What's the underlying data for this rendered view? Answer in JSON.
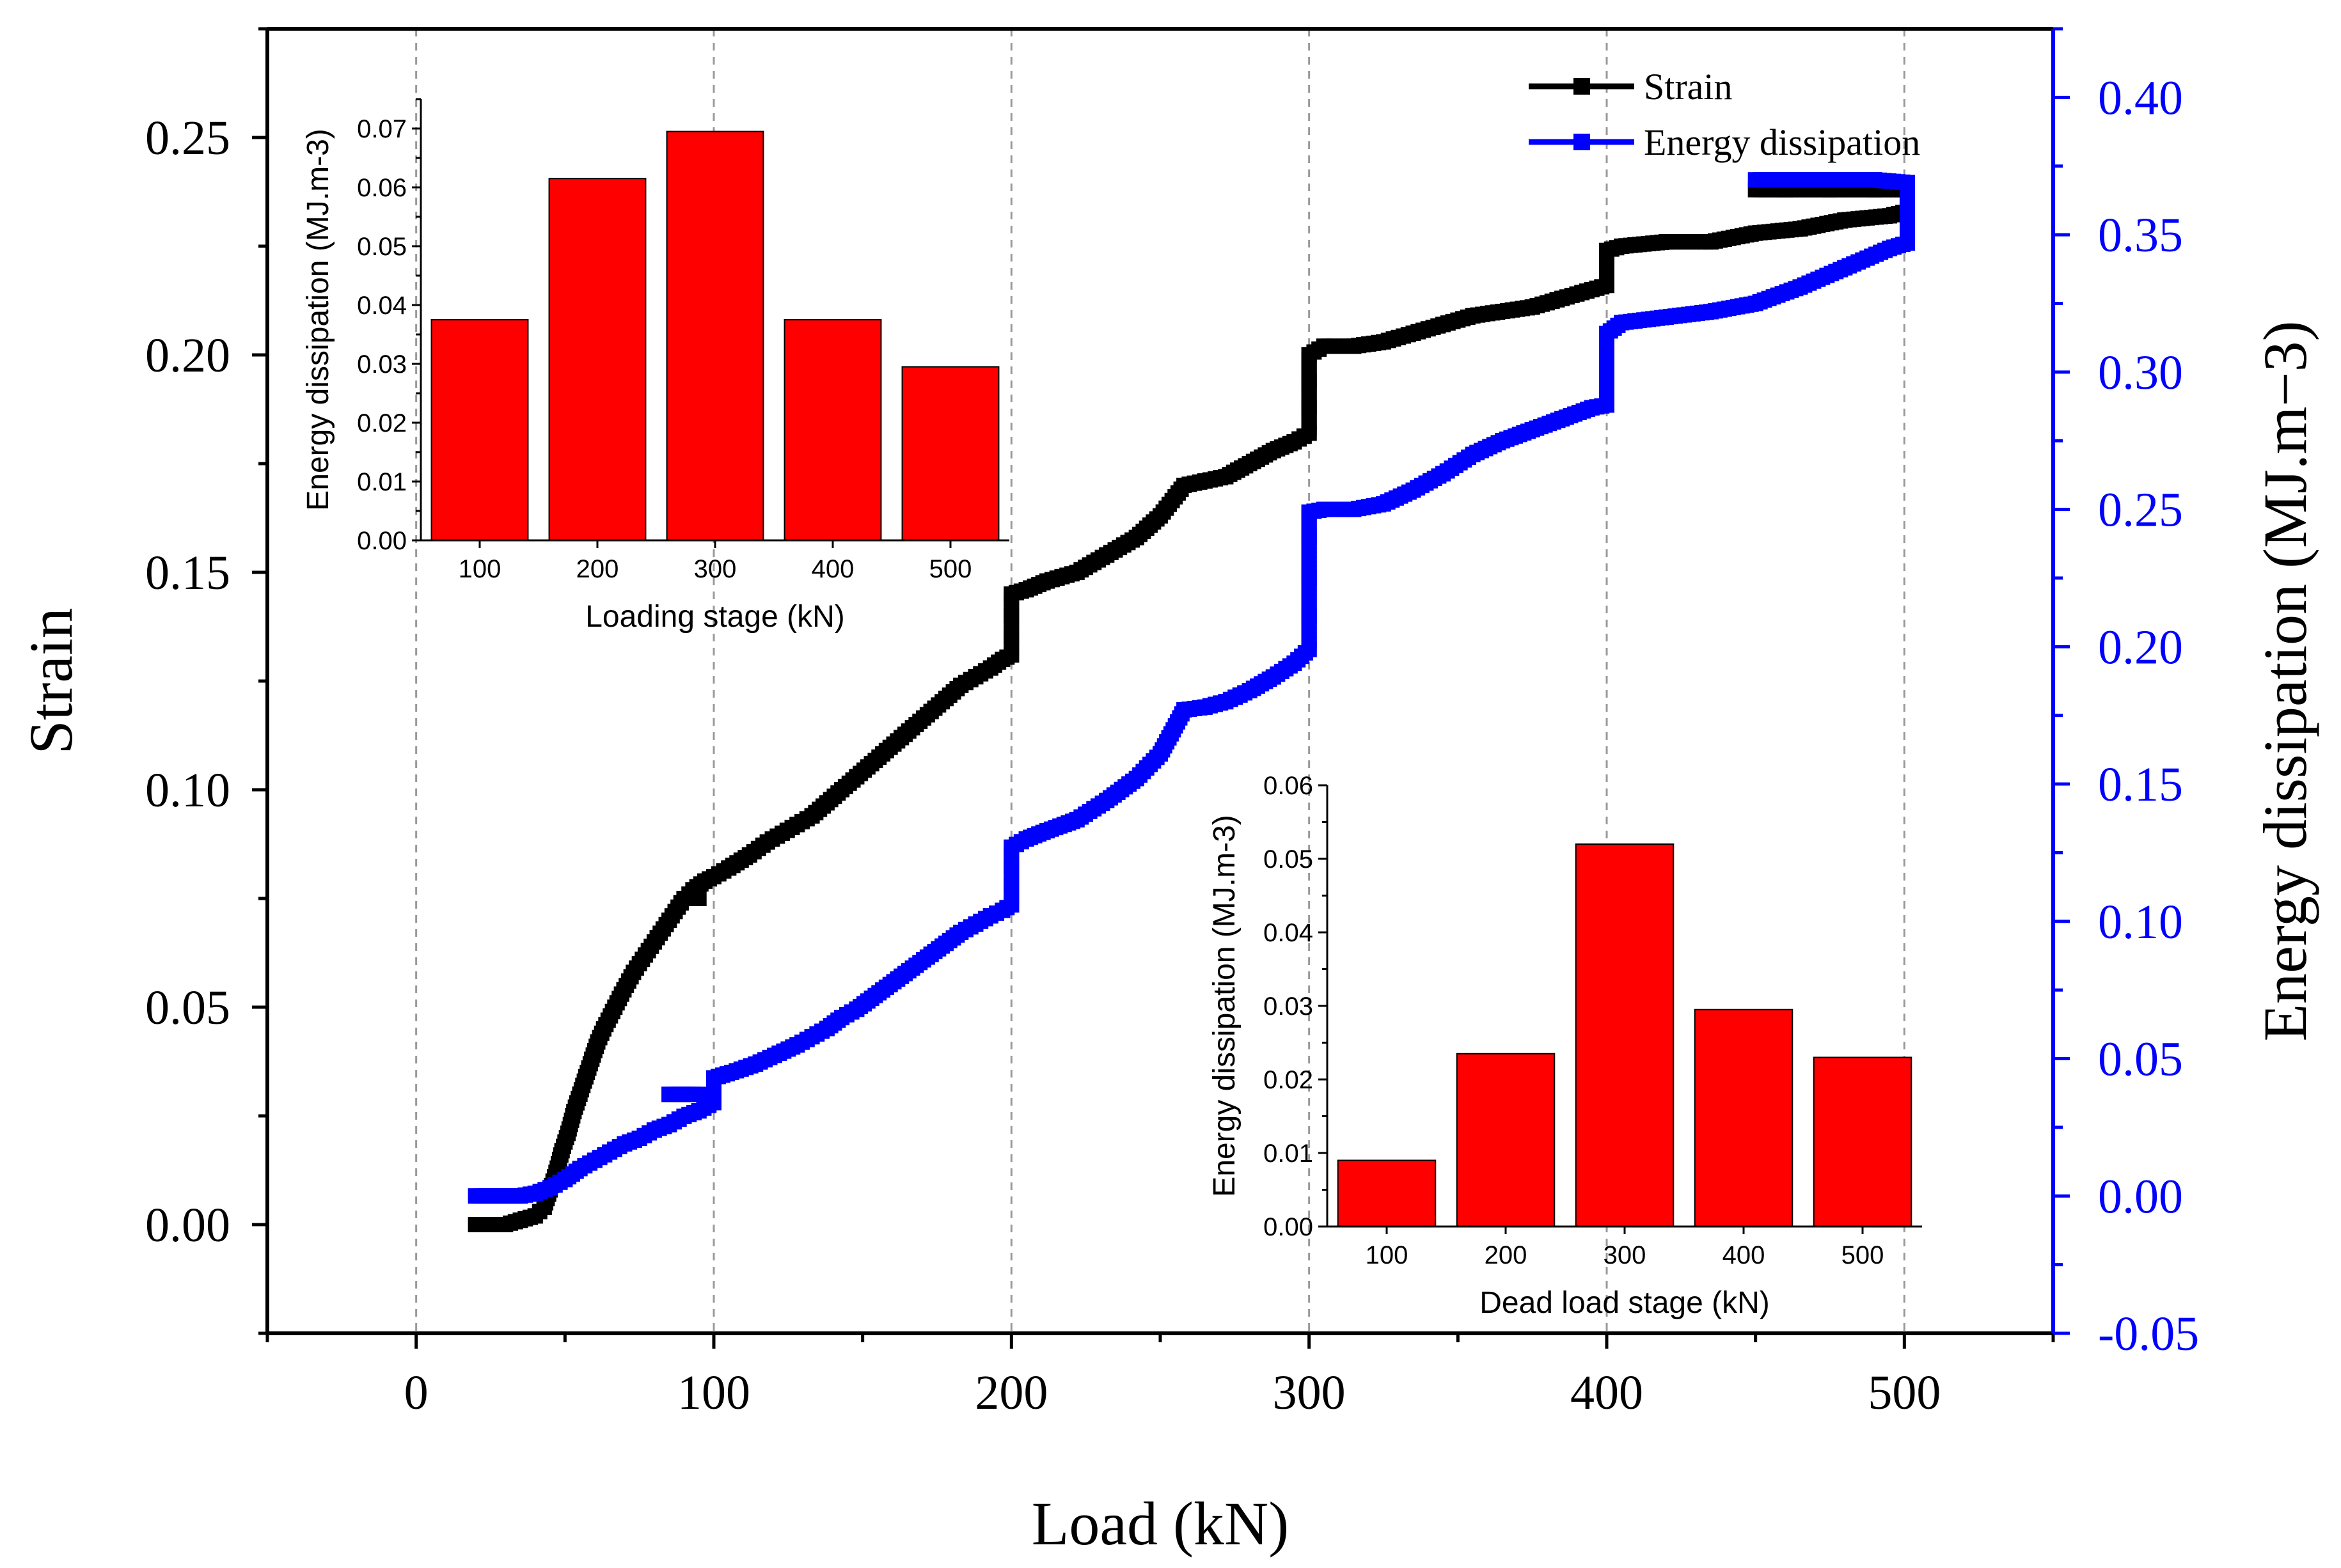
{
  "colors": {
    "strain": "#000000",
    "energy": "#0000ff",
    "bar_fill": "#ff0000",
    "bar_stroke": "#000000",
    "grid": "#999999",
    "axis": "#000000"
  },
  "chart_data": [
    {
      "id": "main",
      "type": "scatter",
      "title": "",
      "xlabel": "Load (kN)",
      "ylabel": "Strain",
      "y2label": "Energy dissipation (MJ.m−3)",
      "xlim": [
        -50,
        550
      ],
      "ylim": [
        -0.025,
        0.275
      ],
      "y2lim": [
        -0.05,
        0.425
      ],
      "xticks": [
        0,
        100,
        200,
        300,
        400,
        500
      ],
      "xtick_labels": [
        "0",
        "100",
        "200",
        "300",
        "400",
        "500"
      ],
      "yticks": [
        0.0,
        0.05,
        0.1,
        0.15,
        0.2,
        0.25
      ],
      "ytick_labels": [
        "0.00",
        "0.05",
        "0.10",
        "0.15",
        "0.20",
        "0.25"
      ],
      "y2ticks": [
        -0.05,
        0.0,
        0.05,
        0.1,
        0.15,
        0.2,
        0.25,
        0.3,
        0.35,
        0.4
      ],
      "y2tick_labels": [
        "-0.05",
        "0.00",
        "0.05",
        "0.10",
        "0.15",
        "0.20",
        "0.25",
        "0.30",
        "0.35",
        "0.40"
      ],
      "grid_vertical_at": [
        0,
        100,
        200,
        300,
        400,
        500
      ],
      "legend": [
        "Strain",
        "Energy dissipation"
      ],
      "legend_position": "top-right",
      "series": [
        {
          "name": "Strain",
          "axis": "left",
          "points": [
            [
              20,
              0.0
            ],
            [
              25,
              0.0
            ],
            [
              30,
              0.0
            ],
            [
              35,
              0.001
            ],
            [
              40,
              0.002
            ],
            [
              43,
              0.004
            ],
            [
              45,
              0.008
            ],
            [
              47,
              0.012
            ],
            [
              49,
              0.017
            ],
            [
              51,
              0.021
            ],
            [
              53,
              0.026
            ],
            [
              55,
              0.03
            ],
            [
              57,
              0.034
            ],
            [
              59,
              0.038
            ],
            [
              61,
              0.042
            ],
            [
              63,
              0.045
            ],
            [
              66,
              0.049
            ],
            [
              69,
              0.053
            ],
            [
              73,
              0.058
            ],
            [
              77,
              0.062
            ],
            [
              81,
              0.066
            ],
            [
              85,
              0.07
            ],
            [
              89,
              0.074
            ],
            [
              93,
              0.077
            ],
            [
              97,
              0.079
            ],
            [
              100,
              0.08
            ],
            [
              105,
              0.082
            ],
            [
              112,
              0.085
            ],
            [
              118,
              0.088
            ],
            [
              123,
              0.09
            ],
            [
              128,
              0.092
            ],
            [
              133,
              0.094
            ],
            [
              138,
              0.097
            ],
            [
              143,
              0.1
            ],
            [
              148,
              0.103
            ],
            [
              153,
              0.106
            ],
            [
              158,
              0.109
            ],
            [
              163,
              0.112
            ],
            [
              168,
              0.115
            ],
            [
              173,
              0.118
            ],
            [
              178,
              0.121
            ],
            [
              183,
              0.124
            ],
            [
              188,
              0.126
            ],
            [
              193,
              0.128
            ],
            [
              197,
              0.13
            ],
            [
              200,
              0.131
            ],
            [
              200,
              0.135
            ],
            [
              200,
              0.14
            ],
            [
              200,
              0.145
            ],
            [
              205,
              0.146
            ],
            [
              212,
              0.148
            ],
            [
              222,
              0.15
            ],
            [
              232,
              0.154
            ],
            [
              242,
              0.158
            ],
            [
              250,
              0.163
            ],
            [
              258,
              0.17
            ],
            [
              265,
              0.171
            ],
            [
              272,
              0.172
            ],
            [
              280,
              0.175
            ],
            [
              288,
              0.178
            ],
            [
              295,
              0.18
            ],
            [
              300,
              0.182
            ],
            [
              300,
              0.188
            ],
            [
              300,
              0.194
            ],
            [
              300,
              0.2
            ],
            [
              305,
              0.202
            ],
            [
              315,
              0.202
            ],
            [
              325,
              0.203
            ],
            [
              335,
              0.205
            ],
            [
              345,
              0.207
            ],
            [
              355,
              0.209
            ],
            [
              365,
              0.21
            ],
            [
              375,
              0.211
            ],
            [
              385,
              0.213
            ],
            [
              395,
              0.215
            ],
            [
              400,
              0.216
            ],
            [
              400,
              0.22
            ],
            [
              400,
              0.224
            ],
            [
              405,
              0.225
            ],
            [
              420,
              0.226
            ],
            [
              435,
              0.226
            ],
            [
              450,
              0.228
            ],
            [
              465,
              0.229
            ],
            [
              480,
              0.231
            ],
            [
              495,
              0.232
            ],
            [
              501,
              0.233
            ],
            [
              501,
              0.236
            ],
            [
              501,
              0.238
            ],
            [
              490,
              0.238
            ],
            [
              475,
              0.238
            ],
            [
              460,
              0.238
            ],
            [
              450,
              0.238
            ],
            [
              90,
              0.075
            ],
            [
              95,
              0.075
            ]
          ]
        },
        {
          "name": "Energy dissipation",
          "axis": "right",
          "points": [
            [
              20,
              0.0
            ],
            [
              25,
              0.0
            ],
            [
              30,
              0.0
            ],
            [
              35,
              0.0
            ],
            [
              40,
              0.001
            ],
            [
              45,
              0.003
            ],
            [
              50,
              0.006
            ],
            [
              55,
              0.01
            ],
            [
              60,
              0.013
            ],
            [
              65,
              0.016
            ],
            [
              70,
              0.019
            ],
            [
              75,
              0.021
            ],
            [
              80,
              0.024
            ],
            [
              85,
              0.026
            ],
            [
              90,
              0.029
            ],
            [
              95,
              0.031
            ],
            [
              100,
              0.034
            ],
            [
              100,
              0.039
            ],
            [
              100,
              0.043
            ],
            [
              106,
              0.045
            ],
            [
              114,
              0.048
            ],
            [
              122,
              0.052
            ],
            [
              128,
              0.055
            ],
            [
              133,
              0.058
            ],
            [
              138,
              0.061
            ],
            [
              143,
              0.065
            ],
            [
              148,
              0.068
            ],
            [
              153,
              0.072
            ],
            [
              158,
              0.076
            ],
            [
              163,
              0.08
            ],
            [
              168,
              0.084
            ],
            [
              173,
              0.088
            ],
            [
              178,
              0.092
            ],
            [
              183,
              0.096
            ],
            [
              188,
              0.099
            ],
            [
              193,
              0.102
            ],
            [
              197,
              0.104
            ],
            [
              200,
              0.106
            ],
            [
              200,
              0.113
            ],
            [
              200,
              0.12
            ],
            [
              200,
              0.127
            ],
            [
              205,
              0.13
            ],
            [
              212,
              0.133
            ],
            [
              222,
              0.137
            ],
            [
              232,
              0.144
            ],
            [
              242,
              0.152
            ],
            [
              250,
              0.161
            ],
            [
              258,
              0.177
            ],
            [
              265,
              0.178
            ],
            [
              272,
              0.18
            ],
            [
              280,
              0.184
            ],
            [
              288,
              0.189
            ],
            [
              295,
              0.194
            ],
            [
              300,
              0.199
            ],
            [
              300,
              0.211
            ],
            [
              300,
              0.225
            ],
            [
              300,
              0.24
            ],
            [
              300,
              0.249
            ],
            [
              305,
              0.25
            ],
            [
              315,
              0.25
            ],
            [
              325,
              0.252
            ],
            [
              335,
              0.257
            ],
            [
              345,
              0.263
            ],
            [
              355,
              0.27
            ],
            [
              365,
              0.275
            ],
            [
              375,
              0.279
            ],
            [
              385,
              0.283
            ],
            [
              395,
              0.287
            ],
            [
              400,
              0.288
            ],
            [
              400,
              0.3
            ],
            [
              400,
              0.314
            ],
            [
              405,
              0.318
            ],
            [
              420,
              0.32
            ],
            [
              435,
              0.322
            ],
            [
              450,
              0.325
            ],
            [
              465,
              0.331
            ],
            [
              480,
              0.338
            ],
            [
              495,
              0.345
            ],
            [
              501,
              0.347
            ],
            [
              501,
              0.355
            ],
            [
              501,
              0.362
            ],
            [
              501,
              0.369
            ],
            [
              490,
              0.37
            ],
            [
              475,
              0.37
            ],
            [
              460,
              0.37
            ],
            [
              450,
              0.37
            ],
            [
              85,
              0.037
            ],
            [
              90,
              0.037
            ],
            [
              95,
              0.037
            ]
          ]
        }
      ]
    },
    {
      "id": "inset-loading",
      "type": "bar",
      "title": "",
      "xlabel": "Loading stage (kN)",
      "ylabel": "Energy dissipation (MJ.m-3)",
      "categories": [
        "100",
        "200",
        "300",
        "400",
        "500"
      ],
      "values": [
        0.0375,
        0.0615,
        0.0695,
        0.0375,
        0.0295
      ],
      "ylim": [
        0,
        0.075
      ],
      "yticks": [
        0.0,
        0.01,
        0.02,
        0.03,
        0.04,
        0.05,
        0.06,
        0.07
      ],
      "ytick_labels": [
        "0.00",
        "0.01",
        "0.02",
        "0.03",
        "0.04",
        "0.05",
        "0.06",
        "0.07"
      ]
    },
    {
      "id": "inset-dead",
      "type": "bar",
      "title": "",
      "xlabel": "Dead load stage (kN)",
      "ylabel": "Energy dissipation (MJ.m-3)",
      "categories": [
        "100",
        "200",
        "300",
        "400",
        "500"
      ],
      "values": [
        0.009,
        0.0235,
        0.052,
        0.0295,
        0.023
      ],
      "ylim": [
        0,
        0.06
      ],
      "yticks": [
        0.0,
        0.01,
        0.02,
        0.03,
        0.04,
        0.05,
        0.06
      ],
      "ytick_labels": [
        "0.00",
        "0.01",
        "0.02",
        "0.03",
        "0.04",
        "0.05",
        "0.06"
      ]
    }
  ]
}
